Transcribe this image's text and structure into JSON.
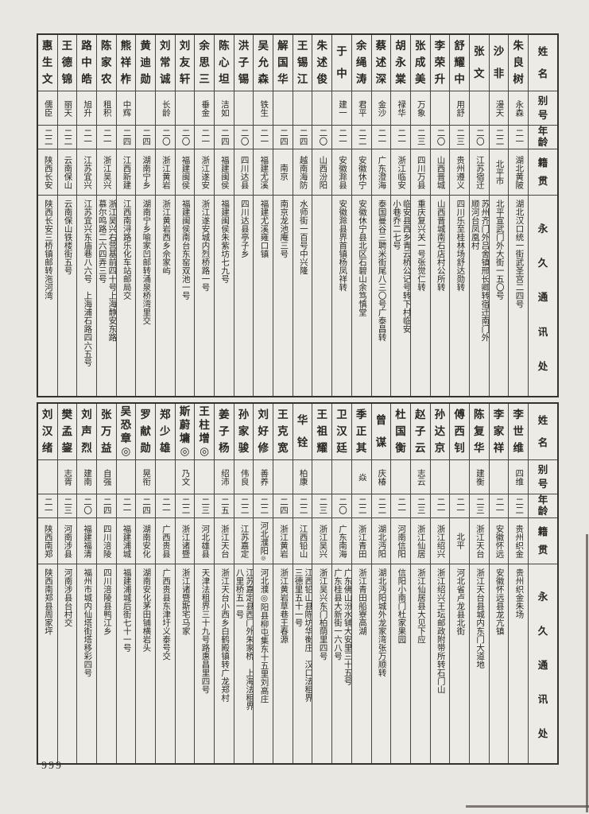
{
  "page_number": "999",
  "headers": {
    "name": "姓名",
    "alias": "别号",
    "age": "年龄",
    "origin": "籍贯",
    "address": "永久通讯处"
  },
  "tables": [
    {
      "entries": [
        {
          "name": "朱良树",
          "alias": "永森",
          "age": "二一",
          "origin": "湖北黄陂",
          "address": [
            "湖北汉口统一街武圣宫二四号"
          ]
        },
        {
          "name": "沙非",
          "alias": "漫天",
          "age": "二二",
          "origin": "北平市",
          "address": [
            "北平宣武门外大街一五〇号"
          ]
        },
        {
          "name": "张文",
          "alias": "",
          "age": "二〇",
          "origin": "江苏宿迁",
          "address": [
            "苏州齐门外吕舍镇邢长卿转宿迁南门外",
            "顺河台凤凰村"
          ]
        },
        {
          "name": "舒耀中",
          "alias": "用舒",
          "age": "二三",
          "origin": "贵州遵义",
          "address": [
            "四川乐至桂林场舒达勋转"
          ]
        },
        {
          "name": "李荣升",
          "alias": "",
          "age": "二〇",
          "origin": "山西晋城",
          "address": [
            "山西晋城南石店村公所转"
          ]
        },
        {
          "name": "张成美",
          "alias": "万象",
          "age": "二三",
          "origin": "四川万县",
          "address": [
            "重庆复兴关一号张觉仁转"
          ]
        },
        {
          "name": "胡永棠",
          "alias": "禄华",
          "age": "二一",
          "origin": "浙江临安",
          "address": [
            "临安县西乡青云桥公记号转下村临安",
            "小巷乔二七号"
          ]
        },
        {
          "name": "蔡述深",
          "alias": "金沙",
          "age": "二一",
          "origin": "广东澄海",
          "address": [
            "泰国曼谷三聘米街尾八三〇号广泰昌转"
          ]
        },
        {
          "name": "余绳涛",
          "alias": "君平",
          "age": "二二",
          "origin": "安徽休宁",
          "address": [
            "安徽休宁县北区石碧山余笃慎堂"
          ]
        },
        {
          "name": "于中",
          "alias": "建一",
          "age": "二一",
          "origin": "安徽滁县",
          "address": [
            "安徽滁县界首镇杨凤祥转"
          ]
        },
        {
          "name": "朱述俊",
          "alias": "",
          "age": "二〇",
          "origin": "山西汾阳",
          "address": []
        },
        {
          "name": "王锡江",
          "alias": "",
          "age": "二四",
          "origin": "越南海防",
          "address": [
            "水师街一百号中兴隆"
          ]
        },
        {
          "name": "解国华",
          "alias": "",
          "age": "二四",
          "origin": "南京",
          "address": [
            "南京龙池庵三号"
          ]
        },
        {
          "name": "吴允森",
          "alias": "铁生",
          "age": "二一",
          "origin": "福建尤溪",
          "address": [
            "福建尤溪雍口镇"
          ]
        },
        {
          "name": "洪子锡",
          "alias": "",
          "age": "二〇",
          "origin": "四川达县",
          "address": [
            "四川达县亭子乡"
          ]
        },
        {
          "name": "陈心坦",
          "alias": "洁如",
          "age": "二四",
          "origin": "福建闽侯",
          "address": [
            "福建闽侯朱紫坊七九号"
          ]
        },
        {
          "name": "余思三",
          "alias": "垂金",
          "age": "二一",
          "origin": "浙江遂安",
          "address": [
            "浙江遂安城内烈桥路一号"
          ]
        },
        {
          "name": "刘友轩",
          "alias": "",
          "age": "二〇",
          "origin": "福建闽侯",
          "address": [
            "福建闽侯南台东窑双池一号"
          ]
        },
        {
          "name": "刘常诚",
          "alias": "长龄",
          "age": "二〇",
          "origin": "浙江黄岩",
          "address": [
            "浙江黄岩西乡佘家屿"
          ]
        },
        {
          "name": "黄迪勋",
          "alias": "",
          "age": "二四",
          "origin": "湖南宁乡",
          "address": [
            "湖南宁乡喻家凹邮转涌泉桥湾里交"
          ]
        },
        {
          "name": "熊祥柞",
          "alias": "中辉",
          "age": "二四",
          "origin": "江西新建",
          "address": [
            "江西南浔路乐化车站邮局交"
          ]
        },
        {
          "name": "陈家农",
          "alias": "租积",
          "age": "二一",
          "origin": "浙江吴兴",
          "address": [
            "浙江吴兴右营基前四十号上海静安东路",
            "慕尔鸣路二六四弄三号"
          ]
        },
        {
          "name": "路中皓",
          "alias": "旭升",
          "age": "二一",
          "origin": "江苏宜兴",
          "address": [
            "江苏宜兴东庙巷八六号　上海浦石路四六五号"
          ]
        },
        {
          "name": "王德锦",
          "alias": "丽天",
          "age": "二二",
          "origin": "云南保山",
          "address": [
            "云南保山铁楼街五号"
          ]
        },
        {
          "name": "惠生文",
          "alias": "儒臣",
          "age": "二二",
          "origin": "陕西长安",
          "address": [
            "陕西长安三桥镇邮转沲河湾"
          ]
        }
      ]
    },
    {
      "entries": [
        {
          "name": "李世维",
          "alias": "四维",
          "age": "二二",
          "origin": "贵州织金",
          "address": [
            "贵州织金朱场"
          ]
        },
        {
          "name": "李家祥",
          "alias": "",
          "age": "二一",
          "origin": "安徽怀远",
          "address": [
            "安徽怀远县龙亢镇"
          ]
        },
        {
          "name": "陈复华",
          "alias": "建衡",
          "age": "二三",
          "origin": "浙江天台",
          "address": [
            "浙江天台县城内东门大道地"
          ]
        },
        {
          "name": "傅西钊",
          "alias": "",
          "age": "二一",
          "origin": "北平",
          "address": [
            "河北省卢龙县北街"
          ]
        },
        {
          "name": "孙达京",
          "alias": "",
          "age": "二一",
          "origin": "浙江绍兴",
          "address": [
            "浙江绍兴王坛邮政附带所转石门山"
          ]
        },
        {
          "name": "赵子云",
          "alias": "志云",
          "age": "二三",
          "origin": "浙江仙居",
          "address": [
            "浙江仙居县大见下应"
          ]
        },
        {
          "name": "杜国衡",
          "alias": "",
          "age": "二一",
          "origin": "河南信阳",
          "address": [
            "信阳小南门杜家果园"
          ]
        },
        {
          "name": "曾谋",
          "alias": "庆椿",
          "age": "二二",
          "origin": "湖北沔阳",
          "address": [
            "湖北沔阳城外龙家湾张万顺转"
          ]
        },
        {
          "name": "季正其",
          "alias": "焱",
          "age": "二二",
          "origin": "浙江青田",
          "address": [
            "浙江青田船寮高湖"
          ]
        },
        {
          "name": "卫汉廷",
          "alias": "",
          "age": "二〇",
          "origin": "广东南海",
          "address": [
            "广东佛山汾水铺大安里三十五号",
            "广东桂县大新街一六八号"
          ]
        },
        {
          "name": "王祖耀",
          "alias": "",
          "age": "二三",
          "origin": "浙江吴兴",
          "address": [
            "浙江吴兴东门柏荫里四号"
          ]
        },
        {
          "name": "华铨",
          "alias": "柏康",
          "age": "二二",
          "origin": "江西铅山",
          "address": [
            "江西铅山县陈坊华衡庄　汉口法租界",
            "三德里五十一号"
          ]
        },
        {
          "name": "王克宽",
          "alias": "",
          "age": "二四",
          "origin": "浙江黄岩",
          "address": [
            "浙江黄岩草巷王春源"
          ]
        },
        {
          "name": "刘好修",
          "alias": "善养",
          "age": "二二",
          "origin": "河北濮阳",
          "origin_mark": "◎",
          "address": [
            "河北濮◎阳县柳屯集东十五里刘高庄"
          ]
        },
        {
          "name": "孙家骏",
          "alias": "伟良",
          "age": "二二",
          "origin": "江苏嘉定",
          "address": [
            "江苏嘉定县西门外朱家桥　上海法租界",
            "八里桥五一号"
          ]
        },
        {
          "name": "姜子杨",
          "alias": "绍沛",
          "age": "二五",
          "origin": "浙江天台",
          "address": [
            "浙江天台小西乡白鹤殿镇转广龙郑村"
          ]
        },
        {
          "name": "王柱增",
          "name_mark": "◎",
          "alias": "",
          "age": "二三",
          "origin": "河北雄县",
          "address": [
            "天津法租界三十九号路惠昌里四号"
          ]
        },
        {
          "name": "斯蔚墉",
          "name_mark": "◎",
          "alias": "乃文",
          "age": "二二",
          "origin": "浙江诸暨",
          "address": [
            "浙江诸暨斯宅马家"
          ]
        },
        {
          "name": "郑少雄",
          "alias": "",
          "age": "二一",
          "origin": "广西贵县",
          "address": [
            "广西贵县东津圩义泰号交"
          ]
        },
        {
          "name": "罗献勋",
          "alias": "晃衔",
          "age": "二四",
          "origin": "湖南安化",
          "address": [
            "湖南安化茅田铺横岩头"
          ]
        },
        {
          "name": "吴恐章",
          "name_mark": "◎",
          "alias": "",
          "age": "二一",
          "origin": "福建浦城",
          "address": [
            "福建浦城后街七十一号"
          ]
        },
        {
          "name": "张万益",
          "alias": "自强",
          "age": "二四",
          "origin": "四川涪陵",
          "address": [
            "四川涪陵县鸭江乡"
          ]
        },
        {
          "name": "刘声烈",
          "alias": "建南",
          "age": "二〇",
          "origin": "福建福清",
          "address": [
            "福州市城内仙塔街塔移彩四号"
          ]
        },
        {
          "name": "樊孟鋆",
          "alias": "志胥",
          "age": "二三",
          "origin": "河南涉县",
          "address": [
            "河南涉县台村交"
          ]
        },
        {
          "name": "刘汉绪",
          "alias": "",
          "age": "二一",
          "origin": "陕西南郑",
          "address": [
            "陕西南郑县周家坪"
          ]
        }
      ]
    }
  ]
}
